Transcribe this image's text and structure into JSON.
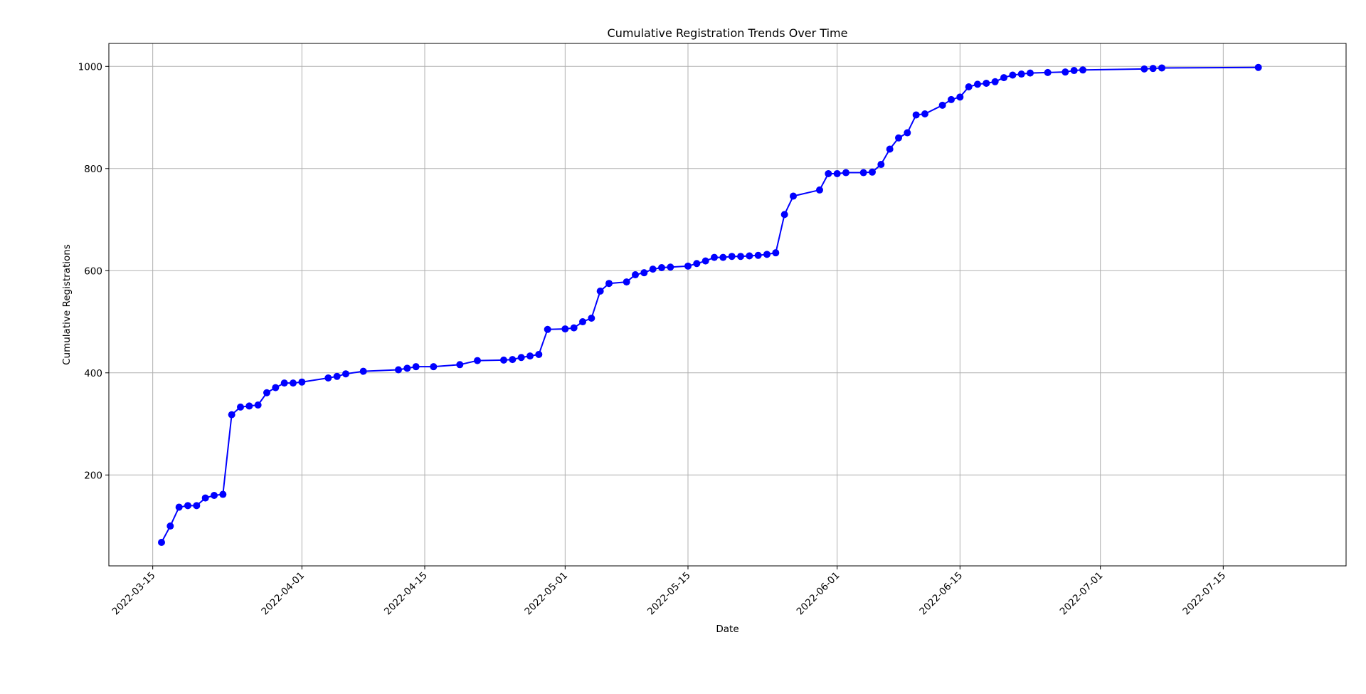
{
  "chart_data": {
    "type": "line",
    "title": "Cumulative Registration Trends Over Time",
    "xlabel": "Date",
    "ylabel": "Cumulative Registrations",
    "xlim": [
      "2022-03-10",
      "2022-07-29"
    ],
    "ylim": [
      22,
      1045
    ],
    "x_ticks": [
      "2022-03-15",
      "2022-04-01",
      "2022-04-15",
      "2022-05-01",
      "2022-05-15",
      "2022-06-01",
      "2022-06-15",
      "2022-07-01",
      "2022-07-15"
    ],
    "y_ticks": [
      200,
      400,
      600,
      800,
      1000
    ],
    "grid": true,
    "legend": "none",
    "line_color": "#0000ff",
    "marker": "circle",
    "series": [
      {
        "x": [
          "2022-03-16",
          "2022-03-17",
          "2022-03-18",
          "2022-03-19",
          "2022-03-20",
          "2022-03-21",
          "2022-03-22",
          "2022-03-23",
          "2022-03-24",
          "2022-03-25",
          "2022-03-26",
          "2022-03-27",
          "2022-03-28",
          "2022-03-29",
          "2022-03-30",
          "2022-03-31",
          "2022-04-01",
          "2022-04-04",
          "2022-04-05",
          "2022-04-06",
          "2022-04-08",
          "2022-04-12",
          "2022-04-13",
          "2022-04-14",
          "2022-04-16",
          "2022-04-19",
          "2022-04-21",
          "2022-04-24",
          "2022-04-25",
          "2022-04-26",
          "2022-04-27",
          "2022-04-28",
          "2022-04-29",
          "2022-05-01",
          "2022-05-02",
          "2022-05-03",
          "2022-05-04",
          "2022-05-05",
          "2022-05-06",
          "2022-05-08",
          "2022-05-09",
          "2022-05-10",
          "2022-05-11",
          "2022-05-12",
          "2022-05-13",
          "2022-05-15",
          "2022-05-16",
          "2022-05-17",
          "2022-05-18",
          "2022-05-19",
          "2022-05-20",
          "2022-05-21",
          "2022-05-22",
          "2022-05-23",
          "2022-05-24",
          "2022-05-25",
          "2022-05-26",
          "2022-05-27",
          "2022-05-30",
          "2022-05-31",
          "2022-06-01",
          "2022-06-02",
          "2022-06-04",
          "2022-06-05",
          "2022-06-06",
          "2022-06-07",
          "2022-06-08",
          "2022-06-09",
          "2022-06-10",
          "2022-06-11",
          "2022-06-13",
          "2022-06-14",
          "2022-06-15",
          "2022-06-16",
          "2022-06-17",
          "2022-06-18",
          "2022-06-19",
          "2022-06-20",
          "2022-06-21",
          "2022-06-22",
          "2022-06-23",
          "2022-06-25",
          "2022-06-27",
          "2022-06-28",
          "2022-06-29",
          "2022-07-06",
          "2022-07-07",
          "2022-07-08",
          "2022-07-19"
        ],
        "y": [
          68,
          100,
          137,
          140,
          140,
          155,
          160,
          162,
          318,
          333,
          335,
          337,
          361,
          371,
          380,
          380,
          382,
          390,
          393,
          398,
          403,
          406,
          409,
          412,
          412,
          416,
          424,
          425,
          426,
          430,
          433,
          436,
          485,
          486,
          488,
          500,
          507,
          560,
          575,
          578,
          592,
          596,
          603,
          606,
          607,
          609,
          614,
          619,
          626,
          626,
          628,
          628,
          629,
          630,
          632,
          635,
          710,
          746,
          758,
          790,
          790,
          792,
          792,
          793,
          808,
          838,
          860,
          870,
          905,
          907,
          924,
          935,
          940,
          960,
          965,
          967,
          970,
          978,
          983,
          985,
          987,
          988,
          989,
          992,
          993,
          995,
          996,
          997,
          998
        ]
      }
    ]
  }
}
